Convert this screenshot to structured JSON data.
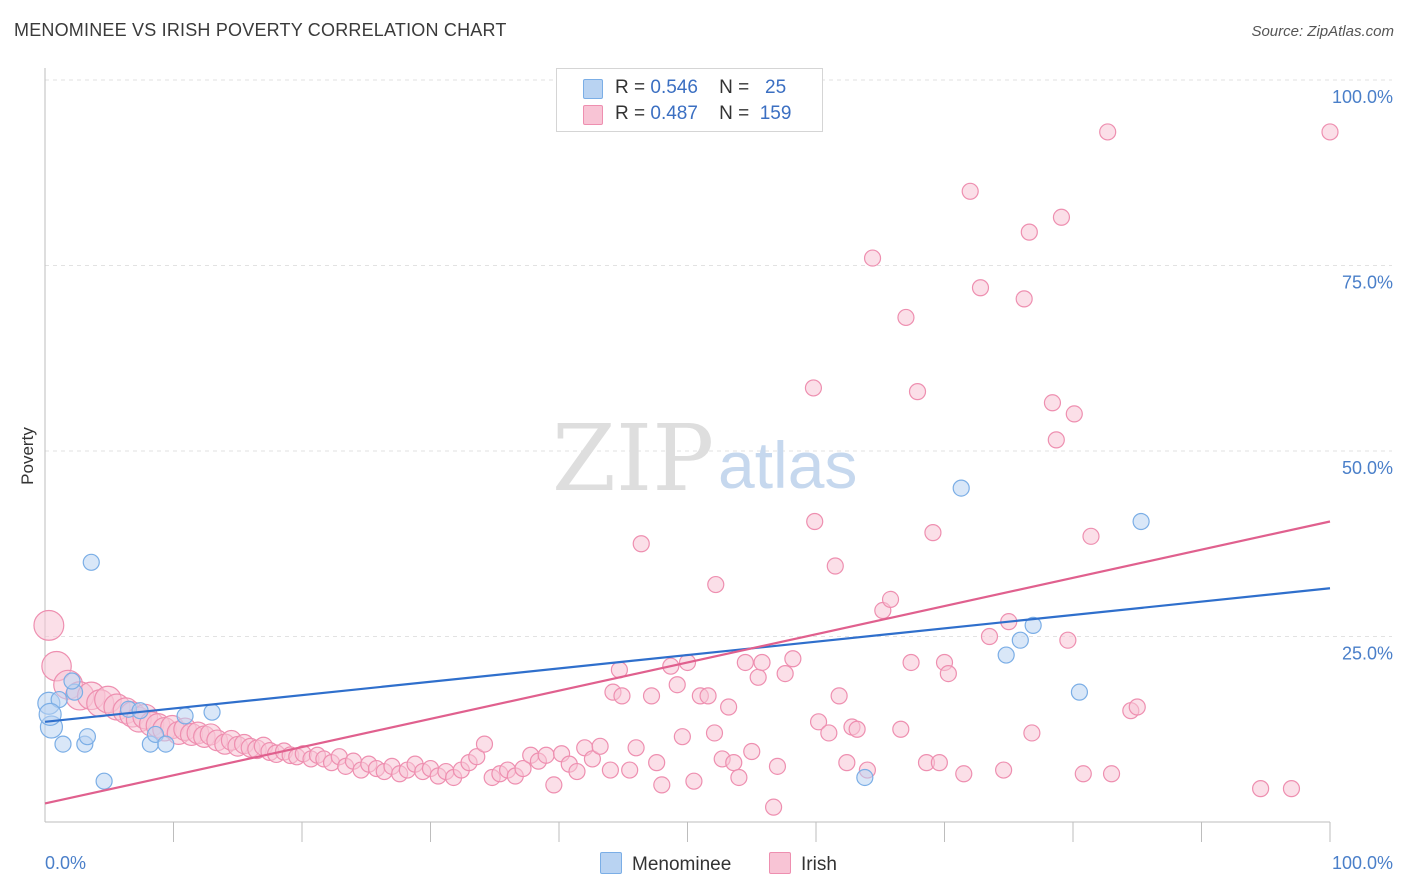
{
  "title": "MENOMINEE VS IRISH POVERTY CORRELATION CHART",
  "source": "Source: ZipAtlas.com",
  "watermark": {
    "zip": "ZIP",
    "atlas": "atlas"
  },
  "legend": {
    "rows": [
      {
        "r_label": "R =",
        "r_value": "0.546",
        "n_label": "N =",
        "n_value": "25"
      },
      {
        "r_label": "R =",
        "r_value": "0.487",
        "n_label": "N =",
        "n_value": "159"
      }
    ]
  },
  "bottom_legend": [
    {
      "label": "Menominee"
    },
    {
      "label": "Irish"
    }
  ],
  "chart_data": {
    "type": "scatter",
    "ylabel": "Poverty",
    "xlabel": "",
    "xlim": [
      0,
      100
    ],
    "ylim": [
      0,
      100
    ],
    "x_tick_labels": [
      "0.0%",
      "100.0%"
    ],
    "y_ticks": [
      {
        "value": 25,
        "label": "25.0%"
      },
      {
        "value": 50,
        "label": "50.0%"
      },
      {
        "value": 75,
        "label": "75.0%"
      },
      {
        "value": 100,
        "label": "100.0%"
      }
    ],
    "grid": "horizontal dashed",
    "legend_position": "top-center",
    "series": [
      {
        "name": "Menominee",
        "color": "#7baee6",
        "fill": "#b9d3f2",
        "line_color": "#2f6fcc",
        "r": 0.546,
        "n": 25,
        "trend": {
          "x": [
            0,
            100
          ],
          "y": [
            13.5,
            31.5
          ]
        },
        "points": [
          {
            "x": 0.3,
            "y": 16.0
          },
          {
            "x": 0.5,
            "y": 12.8
          },
          {
            "x": 1.1,
            "y": 16.5
          },
          {
            "x": 1.4,
            "y": 10.5
          },
          {
            "x": 2.3,
            "y": 17.5
          },
          {
            "x": 2.1,
            "y": 19.0
          },
          {
            "x": 3.1,
            "y": 10.5
          },
          {
            "x": 3.3,
            "y": 11.5
          },
          {
            "x": 3.6,
            "y": 35.0
          },
          {
            "x": 4.6,
            "y": 5.5
          },
          {
            "x": 6.5,
            "y": 15.2
          },
          {
            "x": 7.4,
            "y": 15.0
          },
          {
            "x": 8.2,
            "y": 10.5
          },
          {
            "x": 8.6,
            "y": 11.8
          },
          {
            "x": 9.4,
            "y": 10.5
          },
          {
            "x": 10.9,
            "y": 14.3
          },
          {
            "x": 13.0,
            "y": 14.8
          },
          {
            "x": 63.8,
            "y": 6.0
          },
          {
            "x": 71.3,
            "y": 45.0
          },
          {
            "x": 74.8,
            "y": 22.5
          },
          {
            "x": 75.9,
            "y": 24.5
          },
          {
            "x": 76.9,
            "y": 26.5
          },
          {
            "x": 80.5,
            "y": 17.5
          },
          {
            "x": 85.3,
            "y": 40.5
          },
          {
            "x": 0.4,
            "y": 14.5
          }
        ]
      },
      {
        "name": "Irish",
        "color": "#ee8fb0",
        "fill": "#f8c4d5",
        "line_color": "#e0608e",
        "r": 0.487,
        "n": 159,
        "trend": {
          "x": [
            0,
            100
          ],
          "y": [
            2.5,
            40.5
          ]
        },
        "points": [
          {
            "x": 0.3,
            "y": 26.5
          },
          {
            "x": 0.9,
            "y": 21.0
          },
          {
            "x": 1.8,
            "y": 18.5
          },
          {
            "x": 2.7,
            "y": 17.0
          },
          {
            "x": 3.6,
            "y": 17.0
          },
          {
            "x": 4.3,
            "y": 16.0
          },
          {
            "x": 4.9,
            "y": 16.5
          },
          {
            "x": 5.6,
            "y": 15.5
          },
          {
            "x": 6.3,
            "y": 15.0
          },
          {
            "x": 6.8,
            "y": 14.5
          },
          {
            "x": 7.3,
            "y": 13.8
          },
          {
            "x": 7.8,
            "y": 14.2
          },
          {
            "x": 8.3,
            "y": 13.2
          },
          {
            "x": 8.8,
            "y": 13.0
          },
          {
            "x": 9.3,
            "y": 12.5
          },
          {
            "x": 9.9,
            "y": 12.8
          },
          {
            "x": 10.4,
            "y": 12.0
          },
          {
            "x": 10.9,
            "y": 12.5
          },
          {
            "x": 11.4,
            "y": 11.8
          },
          {
            "x": 11.9,
            "y": 12.0
          },
          {
            "x": 12.4,
            "y": 11.5
          },
          {
            "x": 12.9,
            "y": 11.8
          },
          {
            "x": 13.4,
            "y": 11.0
          },
          {
            "x": 14.0,
            "y": 10.5
          },
          {
            "x": 14.5,
            "y": 11.0
          },
          {
            "x": 15.0,
            "y": 10.2
          },
          {
            "x": 15.5,
            "y": 10.5
          },
          {
            "x": 16.0,
            "y": 10.0
          },
          {
            "x": 16.5,
            "y": 9.8
          },
          {
            "x": 17.0,
            "y": 10.2
          },
          {
            "x": 17.5,
            "y": 9.5
          },
          {
            "x": 18.0,
            "y": 9.2
          },
          {
            "x": 18.6,
            "y": 9.5
          },
          {
            "x": 19.1,
            "y": 9.0
          },
          {
            "x": 19.6,
            "y": 8.8
          },
          {
            "x": 20.1,
            "y": 9.2
          },
          {
            "x": 20.7,
            "y": 8.5
          },
          {
            "x": 21.2,
            "y": 9.0
          },
          {
            "x": 21.7,
            "y": 8.5
          },
          {
            "x": 22.3,
            "y": 8.0
          },
          {
            "x": 22.9,
            "y": 8.8
          },
          {
            "x": 23.4,
            "y": 7.5
          },
          {
            "x": 24.0,
            "y": 8.2
          },
          {
            "x": 24.6,
            "y": 7.0
          },
          {
            "x": 25.2,
            "y": 7.8
          },
          {
            "x": 25.8,
            "y": 7.2
          },
          {
            "x": 26.4,
            "y": 6.8
          },
          {
            "x": 27.0,
            "y": 7.5
          },
          {
            "x": 27.6,
            "y": 6.5
          },
          {
            "x": 28.2,
            "y": 7.0
          },
          {
            "x": 28.8,
            "y": 7.8
          },
          {
            "x": 29.4,
            "y": 6.8
          },
          {
            "x": 30.0,
            "y": 7.2
          },
          {
            "x": 30.6,
            "y": 6.2
          },
          {
            "x": 31.2,
            "y": 6.8
          },
          {
            "x": 31.8,
            "y": 6.0
          },
          {
            "x": 32.4,
            "y": 7.0
          },
          {
            "x": 33.0,
            "y": 8.0
          },
          {
            "x": 33.6,
            "y": 8.8
          },
          {
            "x": 34.2,
            "y": 10.5
          },
          {
            "x": 34.8,
            "y": 6.0
          },
          {
            "x": 35.4,
            "y": 6.5
          },
          {
            "x": 36.0,
            "y": 7.0
          },
          {
            "x": 36.6,
            "y": 6.2
          },
          {
            "x": 37.2,
            "y": 7.2
          },
          {
            "x": 37.8,
            "y": 9.0
          },
          {
            "x": 38.4,
            "y": 8.2
          },
          {
            "x": 39.0,
            "y": 9.0
          },
          {
            "x": 39.6,
            "y": 5.0
          },
          {
            "x": 40.2,
            "y": 9.2
          },
          {
            "x": 40.8,
            "y": 7.8
          },
          {
            "x": 41.4,
            "y": 6.8
          },
          {
            "x": 42.0,
            "y": 10.0
          },
          {
            "x": 42.6,
            "y": 8.5
          },
          {
            "x": 43.2,
            "y": 10.2
          },
          {
            "x": 44.0,
            "y": 7.0
          },
          {
            "x": 44.7,
            "y": 20.5
          },
          {
            "x": 44.2,
            "y": 17.5
          },
          {
            "x": 44.9,
            "y": 17.0
          },
          {
            "x": 45.5,
            "y": 7.0
          },
          {
            "x": 46.0,
            "y": 10.0
          },
          {
            "x": 46.4,
            "y": 37.5
          },
          {
            "x": 47.2,
            "y": 17.0
          },
          {
            "x": 47.6,
            "y": 8.0
          },
          {
            "x": 48.0,
            "y": 5.0
          },
          {
            "x": 48.7,
            "y": 21.0
          },
          {
            "x": 49.2,
            "y": 18.5
          },
          {
            "x": 49.6,
            "y": 11.5
          },
          {
            "x": 50.0,
            "y": 21.5
          },
          {
            "x": 50.5,
            "y": 5.5
          },
          {
            "x": 51.0,
            "y": 17.0
          },
          {
            "x": 51.6,
            "y": 17.0
          },
          {
            "x": 52.1,
            "y": 12.0
          },
          {
            "x": 52.2,
            "y": 32.0
          },
          {
            "x": 52.7,
            "y": 8.5
          },
          {
            "x": 53.2,
            "y": 15.5
          },
          {
            "x": 53.6,
            "y": 8.0
          },
          {
            "x": 54.0,
            "y": 6.0
          },
          {
            "x": 54.5,
            "y": 21.5
          },
          {
            "x": 55.0,
            "y": 9.5
          },
          {
            "x": 55.5,
            "y": 19.5
          },
          {
            "x": 55.8,
            "y": 21.5
          },
          {
            "x": 56.7,
            "y": 2.0
          },
          {
            "x": 57.0,
            "y": 7.5
          },
          {
            "x": 57.6,
            "y": 20.0
          },
          {
            "x": 58.2,
            "y": 22.0
          },
          {
            "x": 59.8,
            "y": 58.5
          },
          {
            "x": 59.9,
            "y": 40.5
          },
          {
            "x": 60.2,
            "y": 13.5
          },
          {
            "x": 61.0,
            "y": 12.0
          },
          {
            "x": 61.5,
            "y": 34.5
          },
          {
            "x": 61.8,
            "y": 17.0
          },
          {
            "x": 62.4,
            "y": 8.0
          },
          {
            "x": 62.8,
            "y": 12.8
          },
          {
            "x": 63.2,
            "y": 12.5
          },
          {
            "x": 64.0,
            "y": 7.0
          },
          {
            "x": 64.4,
            "y": 76.0
          },
          {
            "x": 65.2,
            "y": 28.5
          },
          {
            "x": 65.8,
            "y": 30.0
          },
          {
            "x": 66.6,
            "y": 12.5
          },
          {
            "x": 67.0,
            "y": 68.0
          },
          {
            "x": 67.4,
            "y": 21.5
          },
          {
            "x": 67.9,
            "y": 58.0
          },
          {
            "x": 68.6,
            "y": 8.0
          },
          {
            "x": 69.1,
            "y": 39.0
          },
          {
            "x": 69.6,
            "y": 8.0
          },
          {
            "x": 70.0,
            "y": 21.5
          },
          {
            "x": 70.3,
            "y": 20.0
          },
          {
            "x": 71.5,
            "y": 6.5
          },
          {
            "x": 72.0,
            "y": 85.0
          },
          {
            "x": 72.8,
            "y": 72.0
          },
          {
            "x": 73.5,
            "y": 25.0
          },
          {
            "x": 74.6,
            "y": 7.0
          },
          {
            "x": 75.0,
            "y": 27.0
          },
          {
            "x": 76.2,
            "y": 70.5
          },
          {
            "x": 76.6,
            "y": 79.5
          },
          {
            "x": 76.8,
            "y": 12.0
          },
          {
            "x": 78.4,
            "y": 56.5
          },
          {
            "x": 78.7,
            "y": 51.5
          },
          {
            "x": 79.1,
            "y": 81.5
          },
          {
            "x": 79.6,
            "y": 24.5
          },
          {
            "x": 80.1,
            "y": 55.0
          },
          {
            "x": 80.8,
            "y": 6.5
          },
          {
            "x": 81.4,
            "y": 38.5
          },
          {
            "x": 82.7,
            "y": 93.0
          },
          {
            "x": 83.0,
            "y": 6.5
          },
          {
            "x": 84.5,
            "y": 15.0
          },
          {
            "x": 94.6,
            "y": 4.5
          },
          {
            "x": 100.0,
            "y": 93.0
          },
          {
            "x": 85.0,
            "y": 15.5
          },
          {
            "x": 97.0,
            "y": 4.5
          }
        ]
      }
    ]
  }
}
